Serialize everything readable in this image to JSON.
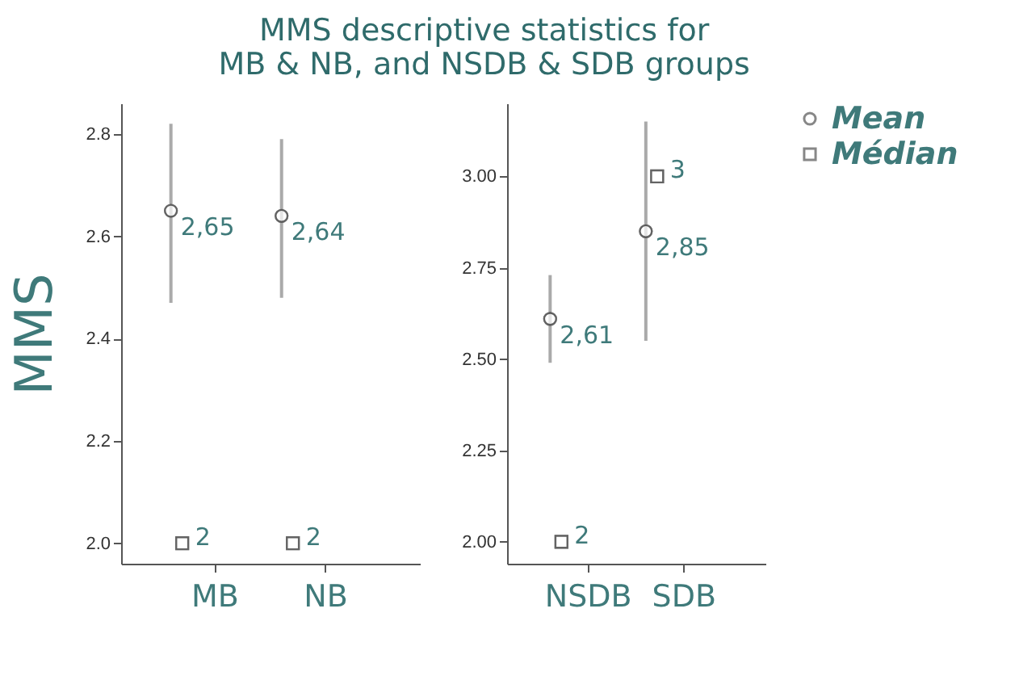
{
  "chart_data": [
    {
      "type": "scatter",
      "title": "MMS descriptive statistics for\nMB & NB, and NSDB & SDB groups",
      "ylabel": "MMS",
      "categories": [
        "MB",
        "NB"
      ],
      "legend": "right",
      "series": [
        {
          "name": "Mean",
          "color": "#555555",
          "marker": "circle",
          "values": [
            2.65,
            2.64
          ],
          "errors": [
            [
              2.47,
              2.82
            ],
            [
              2.48,
              2.79
            ]
          ],
          "value_labels": [
            "2,65",
            "2,64"
          ]
        },
        {
          "name": "Médian",
          "color": "#555555",
          "marker": "square",
          "values": [
            2,
            2
          ],
          "value_labels": [
            "2",
            "2"
          ]
        }
      ],
      "ylim": [
        1.96,
        2.86
      ],
      "yticks": [
        {
          "value": 2,
          "label": "2.0"
        },
        {
          "value": 2.2,
          "label": "2.2"
        },
        {
          "value": 2.4,
          "label": "2.4"
        },
        {
          "value": 2.6,
          "label": "2.6"
        },
        {
          "value": 2.8,
          "label": "2.8"
        }
      ]
    },
    {
      "type": "scatter",
      "categories": [
        "NSDB",
        "SDB"
      ],
      "legend": "right",
      "series": [
        {
          "name": "Mean",
          "color": "#555555",
          "marker": "circle",
          "values": [
            2.61,
            2.85
          ],
          "errors": [
            [
              2.49,
              2.73
            ],
            [
              2.55,
              3.15
            ]
          ],
          "value_labels": [
            "2,61",
            "2,85"
          ]
        },
        {
          "name": "Médian",
          "color": "#555555",
          "marker": "square",
          "values": [
            2,
            3
          ],
          "value_labels": [
            "2",
            "3"
          ]
        }
      ],
      "ylim": [
        1.94,
        3.2
      ],
      "yticks": [
        {
          "value": 2,
          "label": "2.00"
        },
        {
          "value": 2.25,
          "label": "2.25"
        },
        {
          "value": 2.5,
          "label": "2.50"
        },
        {
          "value": 2.75,
          "label": "2.75"
        },
        {
          "value": 3,
          "label": "3.00"
        }
      ]
    }
  ]
}
